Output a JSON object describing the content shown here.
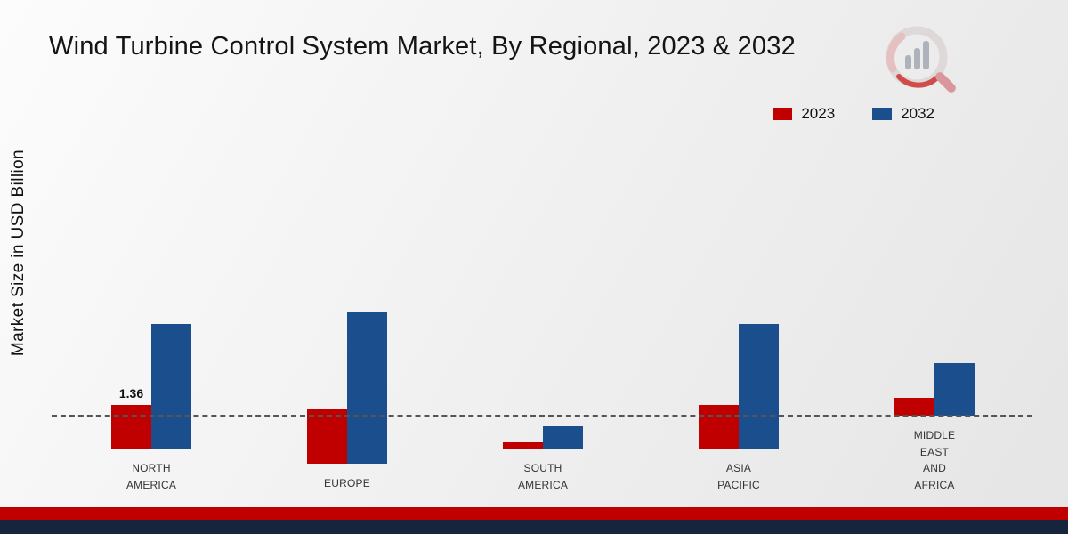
{
  "title": "Wind Turbine Control System Market, By Regional, 2023 & 2032",
  "y_axis_label": "Market Size in USD Billion",
  "legend": [
    {
      "label": "2023",
      "color": "#c00000"
    },
    {
      "label": "2032",
      "color": "#1a4e8c"
    }
  ],
  "colors": {
    "series_2023": "#c00000",
    "series_2032": "#1a4e8c",
    "footer_accent": "#c00000",
    "footer_bar": "#16243c",
    "baseline": "#555555"
  },
  "chart_data": {
    "type": "bar",
    "title": "Wind Turbine Control System Market, By Regional, 2023 & 2032",
    "xlabel": "",
    "ylabel": "Market Size in USD Billion",
    "ylim": [
      0,
      5
    ],
    "grid": false,
    "legend_position": "top-right",
    "categories": [
      "NORTH AMERICA",
      "EUROPE",
      "SOUTH AMERICA",
      "ASIA PACIFIC",
      "MIDDLE EAST AND AFRICA"
    ],
    "categories_display": [
      "NORTH\nAMERICA",
      "EUROPE",
      "SOUTH\nAMERICA",
      "ASIA\nPACIFIC",
      "MIDDLE\nEAST\nAND\nAFRICA"
    ],
    "series": [
      {
        "name": "2023",
        "color": "#c00000",
        "values": [
          1.36,
          1.7,
          0.2,
          1.35,
          0.55
        ]
      },
      {
        "name": "2032",
        "color": "#1a4e8c",
        "values": [
          3.9,
          4.75,
          0.7,
          3.9,
          1.65
        ]
      }
    ],
    "annotations": [
      {
        "series_index": 0,
        "category_index": 0,
        "text": "1.36"
      }
    ]
  }
}
